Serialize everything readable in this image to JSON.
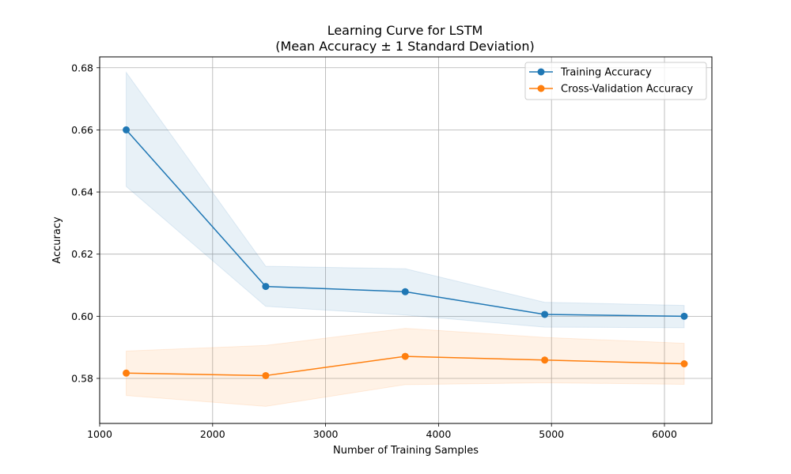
{
  "chart_data": {
    "type": "line",
    "title": "Learning Curve for LSTM",
    "subtitle": "(Mean Accuracy ± 1 Standard Deviation)",
    "xlabel": "Number of Training Samples",
    "ylabel": "Accuracy",
    "xlim": [
      1000,
      6420
    ],
    "ylim": [
      0.5655,
      0.6835
    ],
    "xticks": [
      1000,
      2000,
      3000,
      4000,
      5000,
      6000
    ],
    "xtick_labels": [
      "1000",
      "2000",
      "3000",
      "4000",
      "5000",
      "6000"
    ],
    "yticks": [
      0.58,
      0.6,
      0.62,
      0.64,
      0.66,
      0.68
    ],
    "ytick_labels": [
      "0.58",
      "0.60",
      "0.62",
      "0.64",
      "0.66",
      "0.68"
    ],
    "grid": true,
    "legend_position": "top-right",
    "x": [
      1235,
      2470,
      3705,
      4940,
      6175
    ],
    "series": [
      {
        "name": "Training Accuracy",
        "color": "#1f77b4",
        "values": [
          0.66,
          0.6096,
          0.6079,
          0.6006,
          0.6
        ],
        "lower": [
          0.6418,
          0.6032,
          0.6004,
          0.5965,
          0.5963
        ],
        "upper": [
          0.6785,
          0.6161,
          0.6153,
          0.6045,
          0.6035
        ]
      },
      {
        "name": "Cross-Validation Accuracy",
        "color": "#ff7f0e",
        "values": [
          0.5817,
          0.5809,
          0.5871,
          0.5859,
          0.5847
        ],
        "lower": [
          0.5745,
          0.571,
          0.578,
          0.5786,
          0.5781
        ],
        "upper": [
          0.5888,
          0.5906,
          0.5961,
          0.5932,
          0.5913
        ]
      }
    ]
  }
}
